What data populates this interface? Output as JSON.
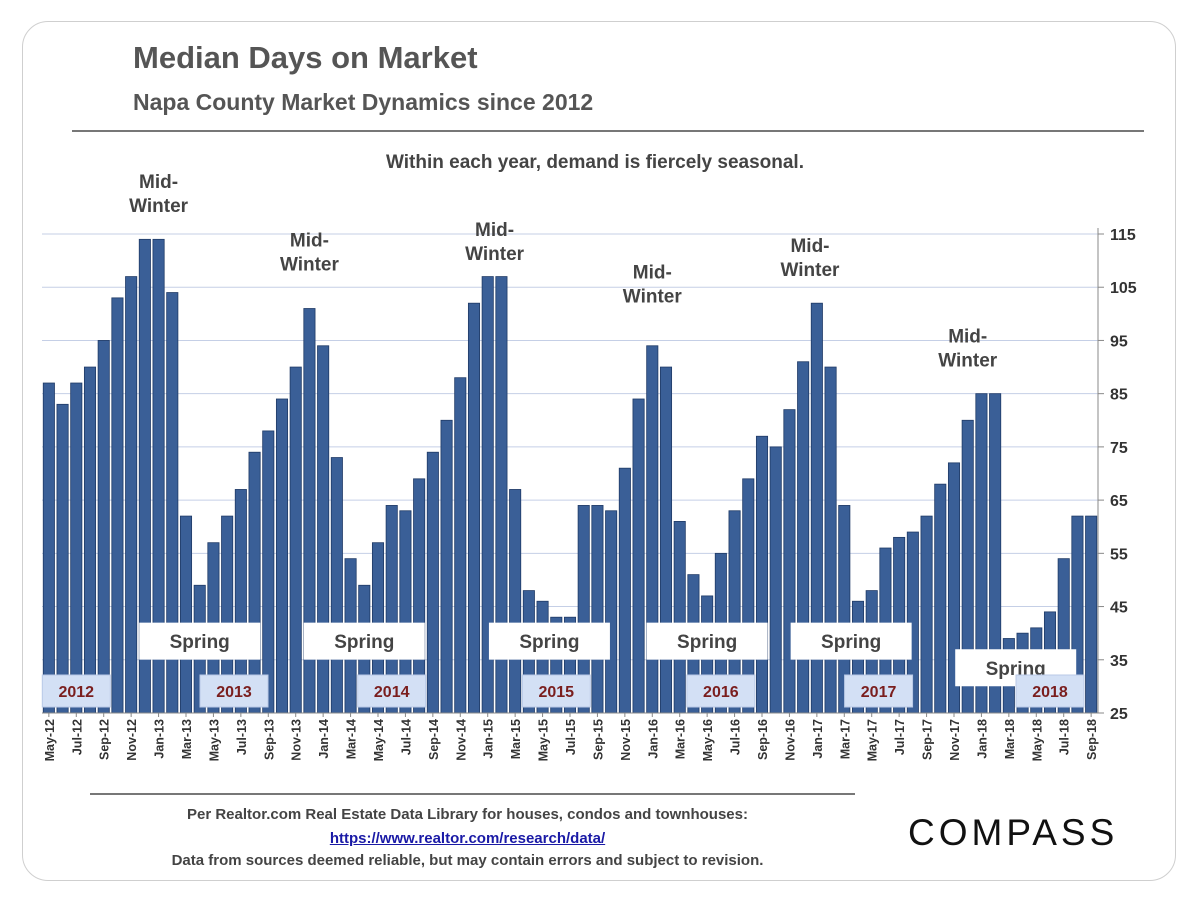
{
  "title": "Median Days on Market",
  "subtitle": "Napa County Market Dynamics since 2012",
  "tagline": "Within each year, demand is fiercely seasonal.",
  "colors": {
    "bar": "#3A5F97",
    "bar_edge": "#1F3A66",
    "grid": "#c5cfe6",
    "year_box": "#d3e0f5",
    "year_text": "#7a1e1e",
    "text": "#444444"
  },
  "chart_data": {
    "type": "bar",
    "categories": [
      "May-12",
      "Jun-12",
      "Jul-12",
      "Aug-12",
      "Sep-12",
      "Oct-12",
      "Nov-12",
      "Dec-12",
      "Jan-13",
      "Feb-13",
      "Mar-13",
      "Apr-13",
      "May-13",
      "Jun-13",
      "Jul-13",
      "Aug-13",
      "Sep-13",
      "Oct-13",
      "Nov-13",
      "Dec-13",
      "Jan-14",
      "Feb-14",
      "Mar-14",
      "Apr-14",
      "May-14",
      "Jun-14",
      "Jul-14",
      "Aug-14",
      "Sep-14",
      "Oct-14",
      "Nov-14",
      "Dec-14",
      "Jan-15",
      "Feb-15",
      "Mar-15",
      "Apr-15",
      "May-15",
      "Jun-15",
      "Jul-15",
      "Aug-15",
      "Sep-15",
      "Oct-15",
      "Nov-15",
      "Dec-15",
      "Jan-16",
      "Feb-16",
      "Mar-16",
      "Apr-16",
      "May-16",
      "Jun-16",
      "Jul-16",
      "Aug-16",
      "Sep-16",
      "Oct-16",
      "Nov-16",
      "Dec-16",
      "Jan-17",
      "Feb-17",
      "Mar-17",
      "Apr-17",
      "May-17",
      "Jun-17",
      "Jul-17",
      "Aug-17",
      "Sep-17",
      "Oct-17",
      "Nov-17",
      "Dec-17",
      "Jan-18",
      "Feb-18",
      "Mar-18",
      "Apr-18",
      "May-18",
      "Jun-18",
      "Jul-18",
      "Aug-18",
      "Sep-18"
    ],
    "values": [
      87,
      83,
      87,
      90,
      95,
      103,
      107,
      114,
      114,
      104,
      62,
      49,
      57,
      62,
      67,
      74,
      78,
      84,
      90,
      101,
      94,
      73,
      54,
      49,
      57,
      64,
      63,
      69,
      74,
      80,
      88,
      102,
      107,
      107,
      67,
      48,
      46,
      43,
      43,
      64,
      64,
      63,
      71,
      84,
      94,
      90,
      61,
      51,
      47,
      55,
      63,
      69,
      77,
      75,
      82,
      91,
      102,
      90,
      64,
      46,
      48,
      56,
      58,
      59,
      62,
      68,
      72,
      80,
      85,
      85,
      39,
      40,
      41,
      44,
      54,
      62,
      62
    ],
    "ylim": [
      25,
      118
    ],
    "yticks": [
      25,
      35,
      45,
      55,
      65,
      75,
      85,
      95,
      105,
      115
    ],
    "xtick_labels": [
      "May-12",
      "Jul-12",
      "Sep-12",
      "Nov-12",
      "Jan-13",
      "Mar-13",
      "May-13",
      "Jul-13",
      "Sep-13",
      "Nov-13",
      "Jan-14",
      "Mar-14",
      "May-14",
      "Jul-14",
      "Sep-14",
      "Nov-14",
      "Jan-15",
      "Mar-15",
      "May-15",
      "Jul-15",
      "Sep-15",
      "Nov-15",
      "Jan-16",
      "Mar-16",
      "May-16",
      "Jul-16",
      "Sep-16",
      "Nov-16",
      "Jan-17",
      "Mar-17",
      "May-17",
      "Jul-17",
      "Sep-17",
      "Nov-17",
      "Jan-18",
      "Mar-18",
      "May-18",
      "Jul-18",
      "Sep-18"
    ],
    "annotations": {
      "mid_winter": [
        {
          "line1": "Mid-",
          "line2": "Winter",
          "center_index": 8.0,
          "above_value": 118
        },
        {
          "line1": "Mid-",
          "line2": "Winter",
          "center_index": 19.0,
          "above_value": 107
        },
        {
          "line1": "Mid-",
          "line2": "Winter",
          "center_index": 32.5,
          "above_value": 109
        },
        {
          "line1": "Mid-",
          "line2": "Winter",
          "center_index": 44.0,
          "above_value": 101
        },
        {
          "line1": "Mid-",
          "line2": "Winter",
          "center_index": 55.5,
          "above_value": 106
        },
        {
          "line1": "Mid-",
          "line2": "Winter",
          "center_index": 67.0,
          "above_value": 89
        }
      ],
      "spring": [
        {
          "label": "Spring",
          "center_index": 11.0,
          "value": 38.5
        },
        {
          "label": "Spring",
          "center_index": 23.0,
          "value": 38.5
        },
        {
          "label": "Spring",
          "center_index": 36.5,
          "value": 38.5
        },
        {
          "label": "Spring",
          "center_index": 48.0,
          "value": 38.5
        },
        {
          "label": "Spring",
          "center_index": 58.5,
          "value": 38.5
        },
        {
          "label": "Spring",
          "center_index": 70.5,
          "value": 33.5
        }
      ],
      "years": [
        {
          "label": "2012",
          "center_index": 2.0
        },
        {
          "label": "2013",
          "center_index": 13.5
        },
        {
          "label": "2014",
          "center_index": 25.0
        },
        {
          "label": "2015",
          "center_index": 37.0
        },
        {
          "label": "2016",
          "center_index": 49.0
        },
        {
          "label": "2017",
          "center_index": 60.5
        },
        {
          "label": "2018",
          "center_index": 73.0
        }
      ]
    }
  },
  "footer": {
    "line1": "Per Realtor.com Real Estate Data Library for houses, condos and townhouses:",
    "link": "https://www.realtor.com/research/data/",
    "line3": "Data from sources deemed reliable, but may contain errors and subject to revision."
  },
  "logo_text": "COMPASS"
}
